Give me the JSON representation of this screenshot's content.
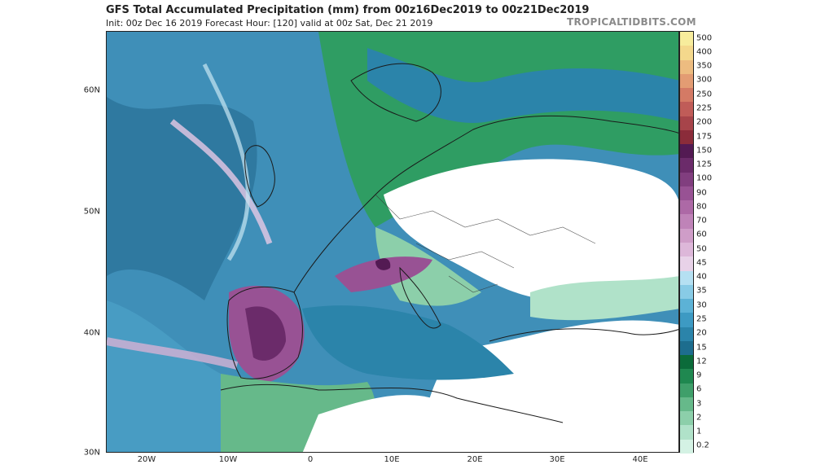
{
  "header": {
    "title": "GFS Total Accumulated Precipitation (mm) from 00z16Dec2019 to 00z21Dec2019",
    "subtitle": "Init: 00z Dec 16 2019   Forecast Hour: [120]   valid at 00z Sat, Dec 21 2019",
    "brand": "TROPICALTIDBITS.COM"
  },
  "map": {
    "lat_labels": [
      "60N",
      "50N",
      "40N",
      "30N"
    ],
    "lon_labels": [
      "20W",
      "10W",
      "0",
      "10E",
      "20E",
      "30E",
      "40E"
    ]
  },
  "colorbar": {
    "levels": [
      "0.2",
      "1",
      "2",
      "3",
      "6",
      "9",
      "12",
      "15",
      "20",
      "25",
      "30",
      "35",
      "40",
      "45",
      "50",
      "60",
      "70",
      "80",
      "90",
      "100",
      "125",
      "150",
      "175",
      "200",
      "225",
      "250",
      "300",
      "350",
      "400",
      "500"
    ],
    "colors": [
      "#d4f2e4",
      "#b0e2c9",
      "#8ccfaa",
      "#66b98a",
      "#3f9f6a",
      "#1f8850",
      "#0b6b3a",
      "#1d6d8e",
      "#2b84aa",
      "#3d9ac3",
      "#5cb2d6",
      "#88cbe6",
      "#b5e0f2",
      "#e8d2e8",
      "#ddb7d9",
      "#cf9dc8",
      "#bf83b8",
      "#ad69a6",
      "#985294",
      "#813e7f",
      "#6b2b6a",
      "#531a53",
      "#8b2c3a",
      "#a7444a",
      "#c05c58",
      "#d47a65",
      "#e39c73",
      "#edbc80",
      "#f4d88c",
      "#f7ec9c"
    ]
  }
}
